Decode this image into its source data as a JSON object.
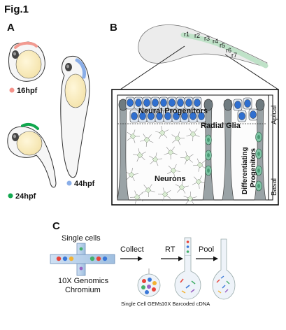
{
  "figure": {
    "title": "Fig.1",
    "panels": {
      "a": "A",
      "b": "B",
      "c": "C"
    }
  },
  "panel_a": {
    "stages": [
      {
        "label": "16hpf",
        "dot_color": "#f4928a"
      },
      {
        "label": "24hpf",
        "dot_color": "#12a84f"
      },
      {
        "label": "44hpf",
        "dot_color": "#8aaee8"
      }
    ]
  },
  "panel_b": {
    "rhombomeres": [
      "r1",
      "r2",
      "r3",
      "r4",
      "r5",
      "r6",
      "r7"
    ],
    "labels": {
      "neural_progenitors": "Neural Progenitors",
      "radial_glia": "Radial Glia",
      "neurons": "Neurons",
      "differentiating_progenitors_1": "Differentiating",
      "differentiating_progenitors_2": "Progenitors",
      "apical": "Apical",
      "basal": "Basal"
    },
    "colors": {
      "progenitor_fill": "#2f6fd0",
      "glia_fill": "#6f7b80",
      "differentiating_fill": "#7fc4a5",
      "neuron_fill": "#d9ecd2"
    }
  },
  "panel_c": {
    "single_cells": "Single cells",
    "chromium_line1": "10X Genomics",
    "chromium_line2": "Chromium",
    "steps": [
      "Collect",
      "RT",
      "Pool"
    ],
    "gems_label": "Single Cell GEMs",
    "cdna_label": "10X Barcoded cDNA"
  }
}
